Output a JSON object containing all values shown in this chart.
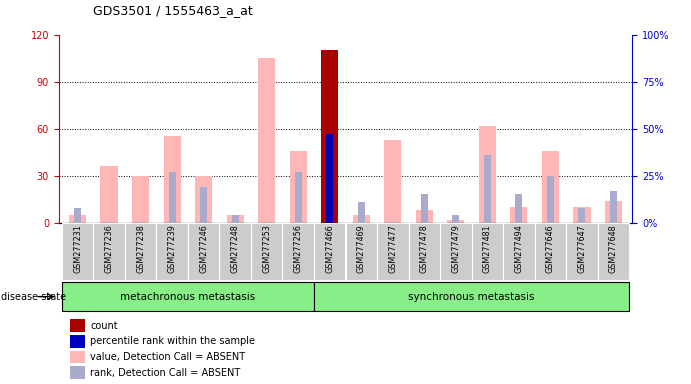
{
  "title": "GDS3501 / 1555463_a_at",
  "samples": [
    "GSM277231",
    "GSM277236",
    "GSM277238",
    "GSM277239",
    "GSM277246",
    "GSM277248",
    "GSM277253",
    "GSM277256",
    "GSM277466",
    "GSM277469",
    "GSM277477",
    "GSM277478",
    "GSM277479",
    "GSM277481",
    "GSM277494",
    "GSM277646",
    "GSM277647",
    "GSM277648"
  ],
  "group1_n": 8,
  "group2_n": 10,
  "group1_label": "metachronous metastasis",
  "group2_label": "synchronous metastasis",
  "disease_state_label": "disease state",
  "ylim_left": [
    0,
    120
  ],
  "ylim_right": [
    0,
    100
  ],
  "yticks_left": [
    0,
    30,
    60,
    90,
    120
  ],
  "yticks_right": [
    0,
    25,
    50,
    75,
    100
  ],
  "ytick_labels_left": [
    "0",
    "30",
    "60",
    "90",
    "120"
  ],
  "ytick_labels_right": [
    "0%",
    "25%",
    "50%",
    "75%",
    "100%"
  ],
  "value_absent": [
    5,
    36,
    30,
    55,
    30,
    5,
    105,
    46,
    0,
    5,
    53,
    8,
    2,
    62,
    10,
    46,
    10,
    14
  ],
  "rank_absent_pct": [
    8,
    0,
    0,
    27,
    19,
    4,
    0,
    27,
    0,
    11,
    0,
    15,
    4,
    36,
    15,
    25,
    8,
    17
  ],
  "count_value": [
    0,
    0,
    0,
    0,
    0,
    0,
    0,
    0,
    110,
    0,
    0,
    0,
    0,
    0,
    0,
    0,
    0,
    0
  ],
  "percentile_pct": [
    0,
    0,
    0,
    0,
    0,
    0,
    0,
    0,
    47,
    0,
    0,
    0,
    0,
    0,
    0,
    0,
    0,
    0
  ],
  "color_value_absent": "#FFB6B6",
  "color_rank_absent": "#AAAACC",
  "color_count": "#AA0000",
  "color_percentile": "#0000BB",
  "bg_plot": "#FFFFFF",
  "bg_xtick": "#CCCCCC",
  "color_left_axis": "#CC0000",
  "color_right_axis": "#0000CC",
  "grid_color": "#000000",
  "group_bg": "#88EE88",
  "group_border": "#000000"
}
